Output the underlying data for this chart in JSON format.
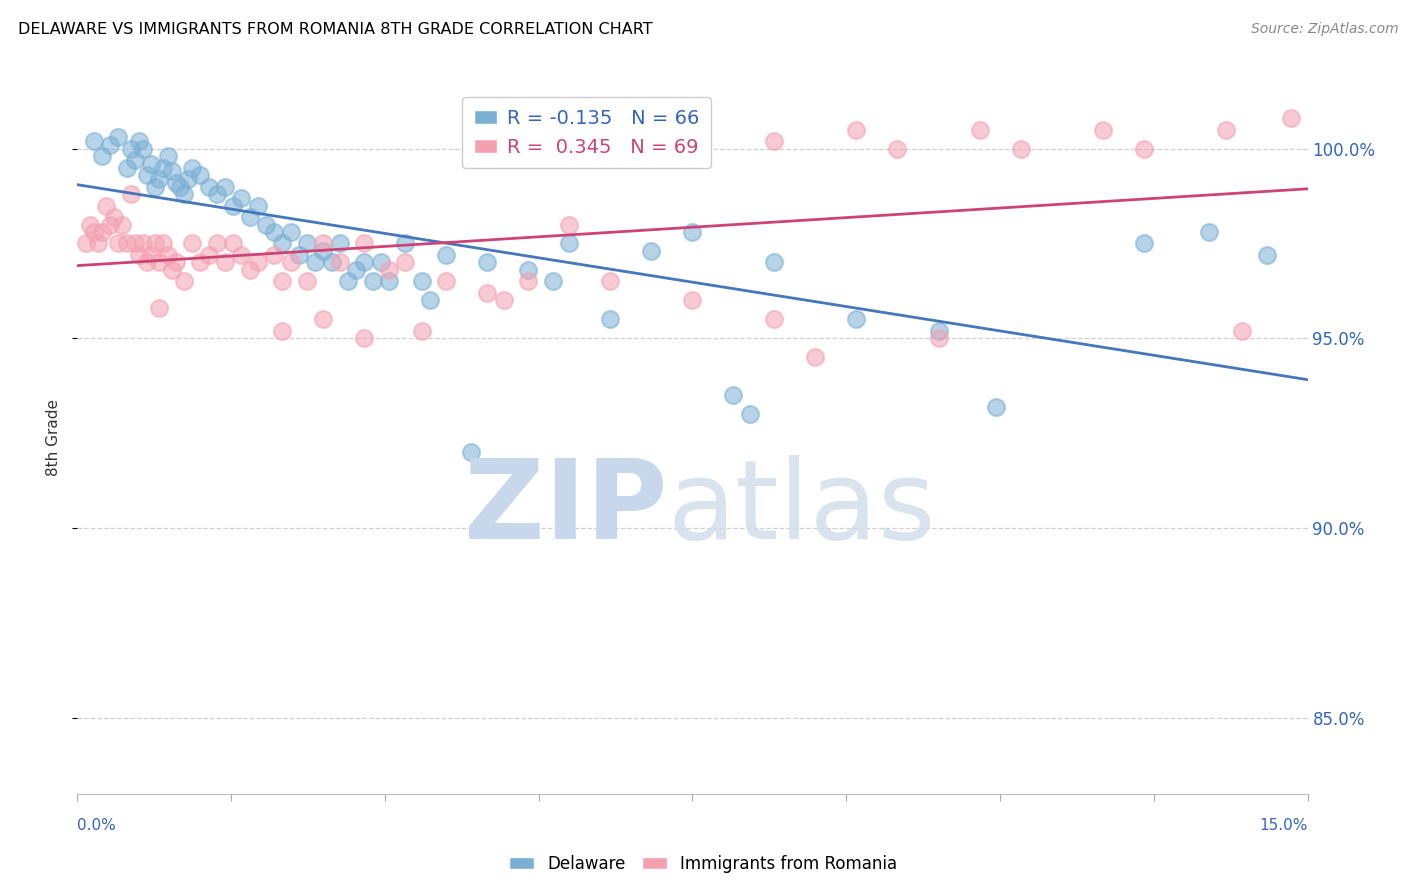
{
  "title": "DELAWARE VS IMMIGRANTS FROM ROMANIA 8TH GRADE CORRELATION CHART",
  "source": "Source: ZipAtlas.com",
  "ylabel": "8th Grade",
  "xlim": [
    0.0,
    15.0
  ],
  "ylim": [
    83.0,
    101.8
  ],
  "yticks": [
    85.0,
    90.0,
    95.0,
    100.0
  ],
  "ytick_labels": [
    "85.0%",
    "90.0%",
    "95.0%",
    "100.0%"
  ],
  "legend_blue_r": "-0.135",
  "legend_blue_n": "66",
  "legend_pink_r": "0.345",
  "legend_pink_n": "69",
  "blue_color": "#7aafd4",
  "pink_color": "#f4a0b0",
  "blue_line_color": "#4477bb",
  "pink_line_color": "#cc4477",
  "blue_points_x": [
    0.2,
    0.3,
    0.4,
    0.5,
    0.6,
    0.65,
    0.7,
    0.75,
    0.8,
    0.85,
    0.9,
    0.95,
    1.0,
    1.05,
    1.1,
    1.15,
    1.2,
    1.25,
    1.3,
    1.35,
    1.4,
    1.5,
    1.6,
    1.7,
    1.8,
    1.9,
    2.0,
    2.1,
    2.2,
    2.3,
    2.4,
    2.5,
    2.6,
    2.7,
    2.8,
    2.9,
    3.0,
    3.1,
    3.2,
    3.4,
    3.5,
    3.6,
    3.7,
    3.8,
    4.0,
    4.2,
    4.3,
    4.5,
    5.0,
    5.5,
    5.8,
    6.0,
    6.5,
    7.0,
    7.5,
    8.0,
    8.2,
    8.5,
    9.5,
    10.5,
    11.2,
    13.0,
    13.8,
    14.5,
    3.3,
    4.8
  ],
  "blue_points_y": [
    100.2,
    99.8,
    100.1,
    100.3,
    99.5,
    100.0,
    99.7,
    100.2,
    100.0,
    99.3,
    99.6,
    99.0,
    99.2,
    99.5,
    99.8,
    99.4,
    99.1,
    99.0,
    98.8,
    99.2,
    99.5,
    99.3,
    99.0,
    98.8,
    99.0,
    98.5,
    98.7,
    98.2,
    98.5,
    98.0,
    97.8,
    97.5,
    97.8,
    97.2,
    97.5,
    97.0,
    97.3,
    97.0,
    97.5,
    96.8,
    97.0,
    96.5,
    97.0,
    96.5,
    97.5,
    96.5,
    96.0,
    97.2,
    97.0,
    96.8,
    96.5,
    97.5,
    95.5,
    97.3,
    97.8,
    93.5,
    93.0,
    97.0,
    95.5,
    95.2,
    93.2,
    97.5,
    97.8,
    97.2,
    96.5,
    92.0
  ],
  "pink_points_x": [
    0.1,
    0.15,
    0.2,
    0.25,
    0.3,
    0.35,
    0.4,
    0.45,
    0.5,
    0.55,
    0.6,
    0.65,
    0.7,
    0.75,
    0.8,
    0.85,
    0.9,
    0.95,
    1.0,
    1.05,
    1.1,
    1.15,
    1.2,
    1.3,
    1.4,
    1.5,
    1.6,
    1.7,
    1.8,
    1.9,
    2.0,
    2.1,
    2.2,
    2.4,
    2.5,
    2.6,
    2.8,
    3.0,
    3.2,
    3.5,
    3.8,
    4.0,
    4.5,
    5.0,
    5.5,
    6.5,
    7.0,
    7.2,
    8.5,
    9.5,
    10.0,
    11.0,
    11.5,
    12.5,
    13.0,
    14.0,
    14.8,
    1.0,
    2.5,
    3.0,
    3.5,
    4.2,
    5.2,
    6.0,
    7.5,
    8.5,
    14.2,
    9.0,
    10.5
  ],
  "pink_points_y": [
    97.5,
    98.0,
    97.8,
    97.5,
    97.8,
    98.5,
    98.0,
    98.2,
    97.5,
    98.0,
    97.5,
    98.8,
    97.5,
    97.2,
    97.5,
    97.0,
    97.2,
    97.5,
    97.0,
    97.5,
    97.2,
    96.8,
    97.0,
    96.5,
    97.5,
    97.0,
    97.2,
    97.5,
    97.0,
    97.5,
    97.2,
    96.8,
    97.0,
    97.2,
    96.5,
    97.0,
    96.5,
    97.5,
    97.0,
    97.5,
    96.8,
    97.0,
    96.5,
    96.2,
    96.5,
    96.5,
    100.0,
    100.2,
    100.2,
    100.5,
    100.0,
    100.5,
    100.0,
    100.5,
    100.0,
    100.5,
    100.8,
    95.8,
    95.2,
    95.5,
    95.0,
    95.2,
    96.0,
    98.0,
    96.0,
    95.5,
    95.2,
    94.5,
    95.0
  ]
}
